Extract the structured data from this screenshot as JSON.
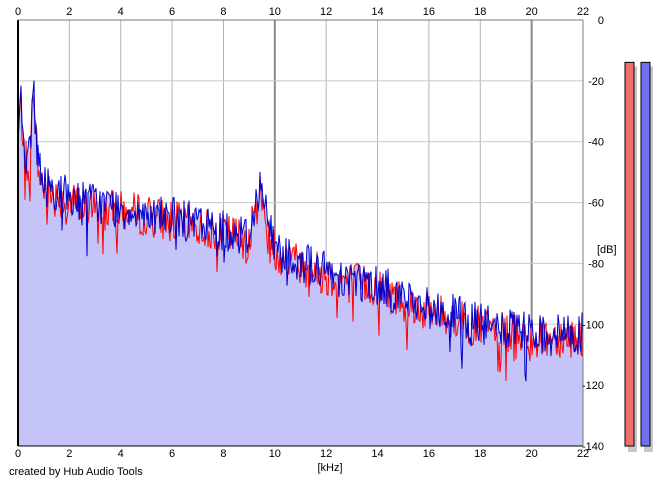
{
  "chart_data": {
    "type": "area",
    "xlabel": "[kHz]",
    "ylabel": "[dB]",
    "xlim": [
      0,
      22
    ],
    "ylim": [
      -140,
      0
    ],
    "x_ticks": [
      "0",
      "2",
      "4",
      "6",
      "8",
      "10",
      "12",
      "14",
      "16",
      "18",
      "20",
      "22"
    ],
    "y_ticks": [
      "0",
      "-20",
      "-40",
      "-60",
      "-80",
      "-100",
      "-120",
      "-140"
    ],
    "grid": true,
    "series": [
      {
        "color": "#ff0000",
        "x": [
          0,
          0.1,
          0.2,
          0.3,
          0.4,
          0.5,
          0.6,
          0.7,
          0.8,
          1,
          1.5,
          2,
          3,
          4,
          5,
          6,
          7,
          8,
          9,
          9.4,
          10,
          11,
          12,
          13,
          14,
          15,
          16,
          17,
          18,
          19,
          20,
          21,
          22
        ],
        "values": [
          -40,
          -27,
          -38,
          -45,
          -50,
          -42,
          -20,
          -38,
          -50,
          -55,
          -58,
          -60,
          -62,
          -63,
          -64,
          -66,
          -68,
          -70,
          -72,
          -57,
          -76,
          -80,
          -84,
          -86,
          -88,
          -92,
          -96,
          -98,
          -101,
          -103,
          -104,
          -104,
          -104
        ]
      },
      {
        "color": "#0000cc",
        "x": [
          0,
          0.1,
          0.2,
          0.3,
          0.4,
          0.5,
          0.6,
          0.7,
          0.8,
          1,
          1.5,
          2,
          3,
          4,
          5,
          6,
          7,
          8,
          9,
          9.4,
          10,
          11,
          12,
          13,
          14,
          15,
          16,
          17,
          18,
          19,
          20,
          21,
          22
        ],
        "values": [
          -38,
          -23,
          -36,
          -44,
          -48,
          -40,
          -17,
          -36,
          -48,
          -54,
          -56,
          -58,
          -60,
          -62,
          -63,
          -65,
          -67,
          -69,
          -71,
          -54,
          -75,
          -79,
          -83,
          -85,
          -87,
          -91,
          -95,
          -97,
          -100,
          -102,
          -103,
          -103,
          -103
        ]
      }
    ],
    "fill_color": "#c4c4f8",
    "level_meters": [
      {
        "color": "#f07070",
        "level_db": -9
      },
      {
        "color": "#7070f0",
        "level_db": -9
      }
    ]
  },
  "footer": {
    "credit": "created by Hub Audio Tools"
  }
}
